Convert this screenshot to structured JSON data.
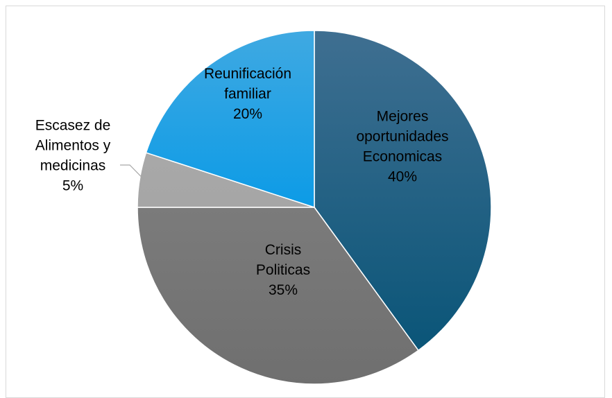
{
  "chart_data": {
    "type": "pie",
    "title": "",
    "slices": [
      {
        "label_lines": [
          "Mejores",
          "oportunidades",
          "Economicas"
        ],
        "value": 40,
        "percent_label": "40%",
        "color_top": "#3f6f91",
        "color_bottom": "#0a5578"
      },
      {
        "label_lines": [
          "Crisis",
          "Politicas"
        ],
        "value": 35,
        "percent_label": "35%",
        "color_top": "#7b7b7b",
        "color_bottom": "#6f6f6f"
      },
      {
        "label_lines": [
          "Escasez de",
          "Alimentos y",
          "medicinas"
        ],
        "value": 5,
        "percent_label": "5%",
        "color_top": "#a8a8a8",
        "color_bottom": "#a6a6a6"
      },
      {
        "label_lines": [
          "Reunificación",
          "familiar"
        ],
        "value": 20,
        "percent_label": "20%",
        "color_top": "#3fa9e2",
        "color_bottom": "#0c9be6"
      }
    ],
    "start_angle_deg": 0,
    "direction": "clockwise",
    "legend": "none",
    "slice_border_color": "#ffffff"
  }
}
